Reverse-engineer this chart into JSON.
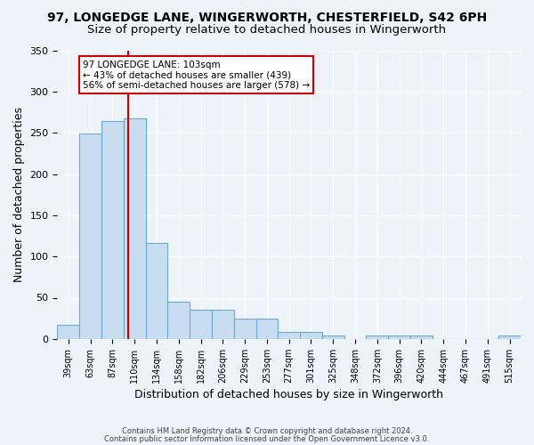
{
  "title1": "97, LONGEDGE LANE, WINGERWORTH, CHESTERFIELD, S42 6PH",
  "title2": "Size of property relative to detached houses in Wingerworth",
  "xlabel": "Distribution of detached houses by size in Wingerworth",
  "ylabel": "Number of detached properties",
  "bar_color": "#c8ddf0",
  "bar_edge_color": "#6aaad4",
  "categories": [
    "39sqm",
    "63sqm",
    "87sqm",
    "110sqm",
    "134sqm",
    "158sqm",
    "182sqm",
    "206sqm",
    "229sqm",
    "253sqm",
    "277sqm",
    "301sqm",
    "325sqm",
    "348sqm",
    "372sqm",
    "396sqm",
    "420sqm",
    "444sqm",
    "467sqm",
    "491sqm",
    "515sqm"
  ],
  "values": [
    17,
    249,
    264,
    267,
    116,
    45,
    35,
    35,
    25,
    25,
    8,
    8,
    4,
    0,
    4,
    4,
    4,
    0,
    0,
    0,
    4
  ],
  "red_line_x": 2.72,
  "annotation_text": "97 LONGEDGE LANE: 103sqm\n← 43% of detached houses are smaller (439)\n56% of semi-detached houses are larger (578) →",
  "annotation_box_color": "#ffffff",
  "annotation_box_edge_color": "#cc0000",
  "red_line_color": "#cc0000",
  "ylim": [
    0,
    350
  ],
  "yticks": [
    0,
    50,
    100,
    150,
    200,
    250,
    300,
    350
  ],
  "footer1": "Contains HM Land Registry data © Crown copyright and database right 2024.",
  "footer2": "Contains public sector information licensed under the Open Government Licence v3.0.",
  "background_color": "#eef2f9",
  "grid_color": "#ffffff",
  "title1_fontsize": 10,
  "title2_fontsize": 9.5,
  "xlabel_fontsize": 9,
  "ylabel_fontsize": 9,
  "annotation_fontsize": 7.5
}
